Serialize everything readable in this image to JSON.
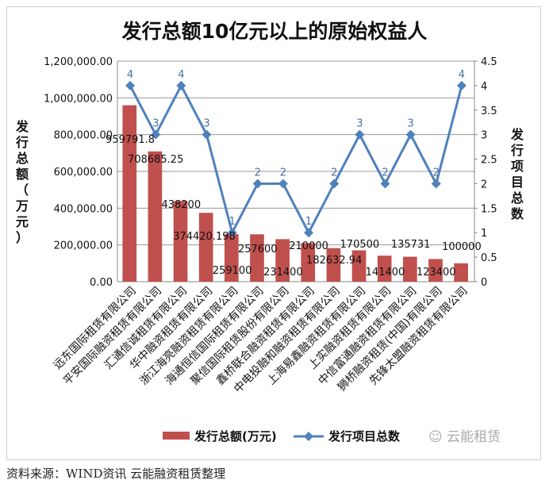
{
  "chart_data": {
    "type": "bar",
    "title": "发行总额10亿元以上的原始权益人",
    "ylabel": "发行总额（万元）",
    "y2label": "发行项目总数",
    "ylim": [
      0,
      1200000
    ],
    "y2lim": [
      0,
      4.5
    ],
    "yticks": [
      "0.00",
      "200,000.00",
      "400,000.00",
      "600,000.00",
      "800,000.00",
      "1,000,000.00",
      "1,200,000.00"
    ],
    "y2ticks": [
      "0",
      "0.5",
      "1",
      "1.5",
      "2",
      "2.5",
      "3",
      "3.5",
      "4",
      "4.5"
    ],
    "categories": [
      "远东国际租赁有限公司",
      "平安国际融资租赁有限公司",
      "汇通信诚租赁有限公司",
      "华中融资租赁有限公司",
      "浙江海亮融资租赁有限公司",
      "海通恒信国际租赁有限公司",
      "聚信国际租赁股份有限公司",
      "鑫桥联合融资租赁有限公司",
      "中电投融和融资租赁有限公司",
      "上海易鑫融资租赁有限公司",
      "上实融资租赁有限公司",
      "中信富通融资租赁有限公司",
      "狮桥融资租赁(中国)有限公司",
      "先锋太盟融资租赁有限公司"
    ],
    "series": [
      {
        "name": "发行总额(万元)",
        "type": "bar",
        "color": "#c0504d",
        "values": [
          959791.8,
          708685.25,
          438200,
          374420.198,
          259100,
          257600,
          231400,
          210000,
          182632.94,
          170500,
          141400,
          135731,
          123400,
          100000
        ],
        "labels": [
          "959791.8",
          "708685.25",
          "438200",
          "374420.198",
          "259100",
          "257600",
          "231400",
          "210000",
          "182632.94",
          "170500",
          "141400",
          "135731",
          "123400",
          "100000"
        ]
      },
      {
        "name": "发行项目总数",
        "type": "line",
        "axis": "right",
        "color": "#4f81bd",
        "values": [
          4,
          3,
          4,
          3,
          1,
          2,
          2,
          1,
          2,
          3,
          2,
          3,
          2,
          4
        ]
      }
    ],
    "legend": "bottom"
  },
  "source": "资料来源：WIND资讯 云能融资租赁整理",
  "watermark": "云能租赁"
}
